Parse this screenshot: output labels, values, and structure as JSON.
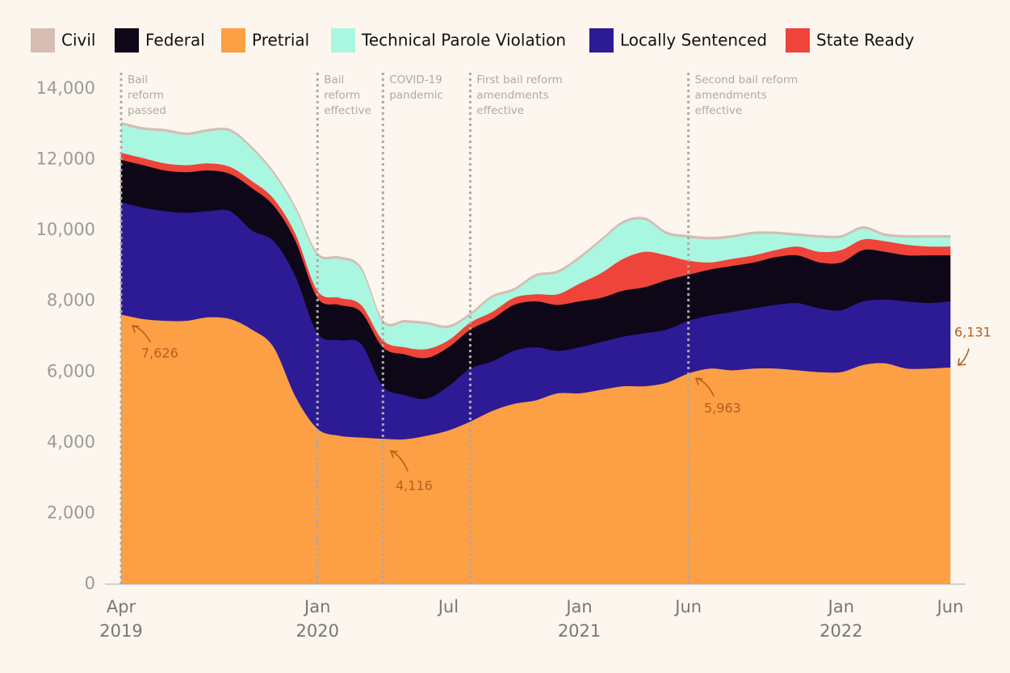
{
  "chart_data": {
    "type": "stacked_area",
    "x": [
      "2019-04",
      "2019-05",
      "2019-06",
      "2019-07",
      "2019-08",
      "2019-09",
      "2019-10",
      "2019-11",
      "2019-12",
      "2020-01",
      "2020-02",
      "2020-03",
      "2020-04",
      "2020-05",
      "2020-06",
      "2020-07",
      "2020-08",
      "2020-09",
      "2020-10",
      "2020-11",
      "2020-12",
      "2021-01",
      "2021-02",
      "2021-03",
      "2021-04",
      "2021-05",
      "2021-06",
      "2021-07",
      "2021-08",
      "2021-09",
      "2021-10",
      "2021-11",
      "2021-12",
      "2022-01",
      "2022-02",
      "2022-03",
      "2022-04",
      "2022-05",
      "2022-06"
    ],
    "series": [
      {
        "name": "Civil",
        "color": "#d6bdb4",
        "values": [
          60,
          60,
          60,
          60,
          60,
          60,
          60,
          60,
          60,
          60,
          60,
          60,
          60,
          60,
          60,
          60,
          60,
          60,
          60,
          60,
          60,
          60,
          60,
          60,
          60,
          60,
          60,
          60,
          60,
          60,
          60,
          60,
          60,
          60,
          60,
          60,
          60,
          60,
          60
        ]
      },
      {
        "name": "Federal",
        "color": "#0e0717",
        "values": [
          1200,
          1200,
          1150,
          1150,
          1150,
          1050,
          1200,
          1000,
          1000,
          1000,
          1000,
          900,
          1100,
          1150,
          1150,
          1100,
          1100,
          1200,
          1300,
          1300,
          1300,
          1300,
          1250,
          1300,
          1300,
          1400,
          1300,
          1300,
          1300,
          1300,
          1350,
          1350,
          1300,
          1350,
          1450,
          1350,
          1300,
          1350,
          1300
        ]
      },
      {
        "name": "Pretrial",
        "color": "#fd9f44",
        "values": [
          7626,
          7500,
          7450,
          7450,
          7550,
          7500,
          7200,
          6700,
          5300,
          4400,
          4200,
          4150,
          4116,
          4100,
          4200,
          4350,
          4600,
          4900,
          5100,
          5200,
          5400,
          5400,
          5500,
          5600,
          5600,
          5700,
          5963,
          6100,
          6050,
          6100,
          6100,
          6050,
          6000,
          6000,
          6200,
          6250,
          6100,
          6100,
          6131
        ],
        "value_labels": [
          "7,626",
          null,
          null,
          null,
          null,
          null,
          null,
          null,
          null,
          null,
          null,
          null,
          "4,116",
          null,
          null,
          null,
          null,
          null,
          null,
          null,
          null,
          null,
          null,
          null,
          null,
          null,
          "5,963",
          null,
          null,
          null,
          null,
          null,
          null,
          null,
          null,
          null,
          null,
          null,
          "6,131"
        ]
      },
      {
        "name": "Technical Parole Violation",
        "color": "#a9f7e1",
        "values": [
          800,
          800,
          900,
          850,
          900,
          1000,
          900,
          700,
          700,
          1000,
          1100,
          1000,
          500,
          700,
          700,
          350,
          200,
          400,
          200,
          500,
          600,
          700,
          900,
          1000,
          900,
          600,
          650,
          650,
          600,
          600,
          450,
          300,
          400,
          350,
          300,
          150,
          200,
          250,
          250
        ]
      },
      {
        "name": "Locally Sentenced",
        "color": "#2d1b95",
        "values": [
          3174,
          3150,
          3100,
          3050,
          3000,
          3050,
          2800,
          3000,
          3400,
          2700,
          2700,
          2650,
          1484,
          1250,
          1050,
          1250,
          1500,
          1400,
          1500,
          1500,
          1200,
          1300,
          1350,
          1400,
          1500,
          1500,
          1487,
          1500,
          1650,
          1700,
          1800,
          1900,
          1800,
          1750,
          1800,
          1800,
          1900,
          1850,
          1869
        ]
      },
      {
        "name": "State Ready",
        "color": "#ee4439",
        "values": [
          200,
          200,
          200,
          200,
          200,
          200,
          200,
          200,
          200,
          200,
          200,
          200,
          200,
          200,
          250,
          200,
          200,
          200,
          200,
          200,
          300,
          500,
          700,
          900,
          1000,
          700,
          400,
          200,
          200,
          200,
          200,
          250,
          300,
          350,
          300,
          300,
          300,
          250,
          250
        ]
      }
    ],
    "ylim": [
      0,
      14000
    ],
    "yticks": [
      0,
      {
        "value": 2000,
        "label": "2,000"
      },
      {
        "value": 4000,
        "label": "4,000"
      },
      {
        "value": 6000,
        "label": "6,000"
      },
      {
        "value": 8000,
        "label": "8,000"
      },
      {
        "value": 10000,
        "label": "10,000"
      },
      {
        "value": 12000,
        "label": "12,000"
      },
      {
        "value": 14000,
        "label": "14,000"
      }
    ],
    "xticks": [
      {
        "value": "2019-04",
        "label": "Apr"
      },
      {
        "value": "2020-01",
        "label": "Jan"
      },
      {
        "value": "2020-07",
        "label": "Jul"
      },
      {
        "value": "2021-01",
        "label": "Jan"
      },
      {
        "value": "2021-06",
        "label": "Jun"
      },
      {
        "value": "2022-01",
        "label": "Jan"
      },
      {
        "value": "2022-06",
        "label": "Jun"
      }
    ],
    "xtick_years": [
      {
        "value": "2019-04",
        "label": "2019"
      },
      {
        "value": "2020-01",
        "label": "2020"
      },
      {
        "value": "2021-01",
        "label": "2021"
      },
      {
        "value": "2022-01",
        "label": "2022"
      }
    ],
    "annotations": [
      {
        "x": "2019-04",
        "lines": [
          "Bail",
          "reform",
          "passed"
        ]
      },
      {
        "x": "2020-01",
        "lines": [
          "Bail",
          "reform",
          "effective"
        ]
      },
      {
        "x": "2020-04",
        "lines": [
          "COVID-19",
          "pandemic"
        ]
      },
      {
        "x": "2020-08",
        "lines": [
          "First bail reform",
          "amendments",
          "effective"
        ]
      },
      {
        "x": "2021-06",
        "lines": [
          "Second bail reform",
          "amendments",
          "effective"
        ]
      }
    ],
    "legend": "top"
  }
}
